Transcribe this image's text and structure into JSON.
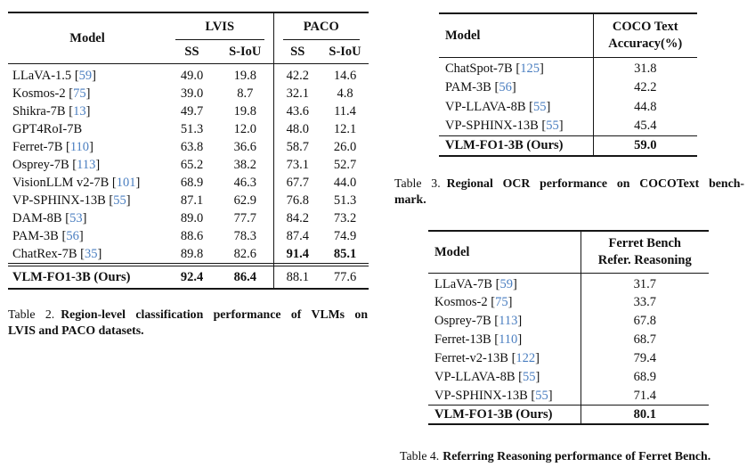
{
  "colors": {
    "citation": "#4a7ec0",
    "text": "#101010"
  },
  "table2": {
    "columns": {
      "model": "Model",
      "groups": [
        "LVIS",
        "PACO"
      ],
      "subcolumns": [
        "SS",
        "S-IoU",
        "SS",
        "S-IoU"
      ]
    },
    "rows": [
      {
        "model": "LLaVA-1.5",
        "cite": "59",
        "values": [
          "49.0",
          "19.8",
          "42.2",
          "14.6"
        ]
      },
      {
        "model": "Kosmos-2",
        "cite": "75",
        "values": [
          "39.0",
          "8.7",
          "32.1",
          "4.8"
        ]
      },
      {
        "model": "Shikra-7B",
        "cite": "13",
        "values": [
          "49.7",
          "19.8",
          "43.6",
          "11.4"
        ]
      },
      {
        "model": "GPT4RoI-7B",
        "cite": null,
        "values": [
          "51.3",
          "12.0",
          "48.0",
          "12.1"
        ]
      },
      {
        "model": "Ferret-7B",
        "cite": "110",
        "values": [
          "63.8",
          "36.6",
          "58.7",
          "26.0"
        ]
      },
      {
        "model": "Osprey-7B",
        "cite": "113",
        "values": [
          "65.2",
          "38.2",
          "73.1",
          "52.7"
        ]
      },
      {
        "model": "VisionLLM v2-7B",
        "cite": "101",
        "values": [
          "68.9",
          "46.3",
          "67.7",
          "44.0"
        ]
      },
      {
        "model": "VP-SPHINX-13B",
        "cite": "55",
        "values": [
          "87.1",
          "62.9",
          "76.8",
          "51.3"
        ]
      },
      {
        "model": "DAM-8B",
        "cite": "53",
        "values": [
          "89.0",
          "77.7",
          "84.2",
          "73.2"
        ]
      },
      {
        "model": "PAM-3B",
        "cite": "56",
        "values": [
          "88.6",
          "78.3",
          "87.4",
          "74.9"
        ]
      },
      {
        "model": "ChatRex-7B",
        "cite": "35",
        "values": [
          "89.8",
          "82.6",
          "91.4",
          "85.1"
        ],
        "bold_values": [
          2,
          3
        ]
      }
    ],
    "final_row": {
      "model": "VLM-FO1-3B (Ours)",
      "cite": null,
      "values": [
        "92.4",
        "86.4",
        "88.1",
        "77.6"
      ],
      "bold_values": [
        0,
        1
      ],
      "bold_model": true
    },
    "caption": {
      "prefix": "Table 2.",
      "line1": "Region-level classification performance of VLMs on",
      "line2": "LVIS and PACO datasets."
    }
  },
  "table3": {
    "columns": {
      "model": "Model",
      "value_line1": "COCO Text",
      "value_line2": "Accuracy(%)"
    },
    "rows": [
      {
        "model": "ChatSpot-7B",
        "cite": "125",
        "value": "31.8"
      },
      {
        "model": "PAM-3B",
        "cite": "56",
        "value": "42.2"
      },
      {
        "model": "VP-LLAVA-8B",
        "cite": "55",
        "value": "44.8"
      },
      {
        "model": "VP-SPHINX-13B",
        "cite": "55",
        "value": "45.4"
      }
    ],
    "final_row": {
      "model": "VLM-FO1-3B (Ours)",
      "cite": null,
      "value": "59.0"
    },
    "caption": {
      "prefix": "Table 3.",
      "line1": "Regional OCR performance on COCOText bench-",
      "line2": "mark."
    }
  },
  "table4": {
    "columns": {
      "model": "Model",
      "value_line1": "Ferret Bench",
      "value_line2": "Refer. Reasoning"
    },
    "rows": [
      {
        "model": "LLaVA-7B",
        "cite": "59",
        "value": "31.7"
      },
      {
        "model": "Kosmos-2",
        "cite": "75",
        "value": "33.7"
      },
      {
        "model": "Osprey-7B",
        "cite": "113",
        "value": "67.8"
      },
      {
        "model": "Ferret-13B",
        "cite": "110",
        "value": "68.7"
      },
      {
        "model": "Ferret-v2-13B",
        "cite": "122",
        "value": "79.4"
      },
      {
        "model": "VP-LLAVA-8B",
        "cite": "55",
        "value": "68.9"
      },
      {
        "model": "VP-SPHINX-13B",
        "cite": "55",
        "value": "71.4"
      }
    ],
    "final_row": {
      "model": "VLM-FO1-3B (Ours)",
      "cite": null,
      "value": "80.1"
    },
    "caption": {
      "prefix": "Table 4.",
      "line1": "Referring Reasoning performance of Ferret Bench.",
      "line2": ""
    }
  }
}
